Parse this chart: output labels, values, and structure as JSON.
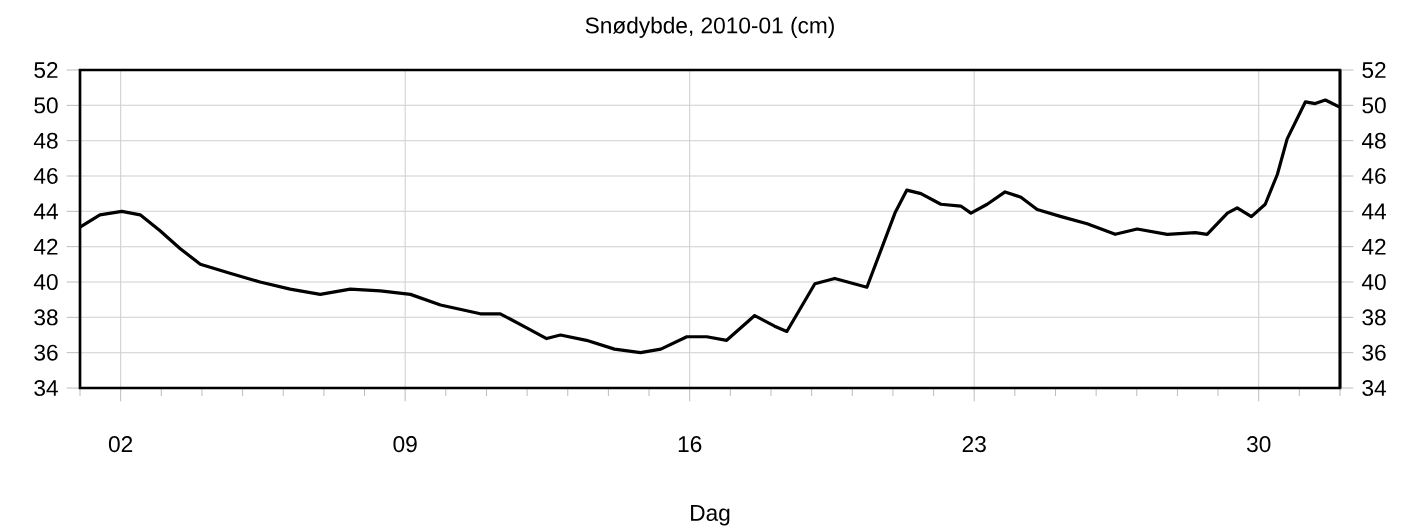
{
  "chart_data": {
    "type": "line",
    "title": "Snødybde, 2010-01 (cm)",
    "xlabel": "Dag",
    "xlim": [
      1,
      32
    ],
    "ylim": [
      34,
      52
    ],
    "y2lim": [
      34,
      52
    ],
    "xticks": [
      {
        "value": 1,
        "label": null
      },
      {
        "value": 2,
        "label": "02"
      },
      {
        "value": 3,
        "label": null
      },
      {
        "value": 4,
        "label": null
      },
      {
        "value": 5,
        "label": null
      },
      {
        "value": 6,
        "label": null
      },
      {
        "value": 7,
        "label": null
      },
      {
        "value": 8,
        "label": null
      },
      {
        "value": 9,
        "label": "09"
      },
      {
        "value": 10,
        "label": null
      },
      {
        "value": 11,
        "label": null
      },
      {
        "value": 12,
        "label": null
      },
      {
        "value": 13,
        "label": null
      },
      {
        "value": 14,
        "label": null
      },
      {
        "value": 15,
        "label": null
      },
      {
        "value": 16,
        "label": "16"
      },
      {
        "value": 17,
        "label": null
      },
      {
        "value": 18,
        "label": null
      },
      {
        "value": 19,
        "label": null
      },
      {
        "value": 20,
        "label": null
      },
      {
        "value": 21,
        "label": null
      },
      {
        "value": 22,
        "label": null
      },
      {
        "value": 23,
        "label": "23"
      },
      {
        "value": 24,
        "label": null
      },
      {
        "value": 25,
        "label": null
      },
      {
        "value": 26,
        "label": null
      },
      {
        "value": 27,
        "label": null
      },
      {
        "value": 28,
        "label": null
      },
      {
        "value": 29,
        "label": null
      },
      {
        "value": 30,
        "label": "30"
      },
      {
        "value": 31,
        "label": null
      },
      {
        "value": 32,
        "label": null
      }
    ],
    "yticks": [
      34,
      36,
      38,
      40,
      42,
      44,
      46,
      48,
      50,
      52
    ],
    "y2ticks": [
      34,
      36,
      38,
      40,
      42,
      44,
      46,
      48,
      50,
      52
    ],
    "grid": true,
    "marker": "none",
    "line_style": "solid",
    "series": [
      {
        "color": "#000000",
        "x": [
          1.0,
          1.49,
          2.03,
          2.48,
          2.97,
          3.46,
          3.96,
          4.69,
          5.43,
          6.17,
          6.91,
          7.65,
          8.39,
          9.13,
          9.87,
          10.85,
          11.34,
          11.99,
          12.48,
          12.82,
          13.46,
          14.15,
          14.79,
          15.29,
          15.93,
          16.42,
          16.91,
          17.6,
          18.09,
          18.39,
          19.08,
          19.57,
          20.36,
          21.05,
          21.34,
          21.69,
          22.18,
          22.67,
          22.92,
          23.32,
          23.76,
          24.15,
          24.55,
          25.14,
          25.78,
          26.47,
          27.01,
          27.75,
          28.44,
          28.73,
          29.23,
          29.47,
          29.82,
          30.16,
          30.46,
          30.7,
          31.15,
          31.39,
          31.64,
          31.99
        ],
        "values": [
          43.1,
          43.8,
          44.0,
          43.8,
          42.9,
          41.9,
          41.0,
          40.5,
          40.0,
          39.6,
          39.3,
          39.6,
          39.5,
          39.3,
          38.7,
          38.2,
          38.2,
          37.4,
          36.8,
          37.0,
          36.7,
          36.2,
          36.0,
          36.2,
          36.9,
          36.9,
          36.7,
          38.1,
          37.5,
          37.2,
          39.9,
          40.2,
          39.7,
          43.9,
          45.2,
          45.0,
          44.4,
          44.3,
          43.9,
          44.4,
          45.1,
          44.8,
          44.1,
          43.7,
          43.3,
          42.7,
          43.0,
          42.7,
          42.8,
          42.7,
          43.9,
          44.2,
          43.7,
          44.4,
          46.1,
          48.1,
          50.2,
          50.1,
          50.3,
          49.9
        ]
      }
    ]
  }
}
